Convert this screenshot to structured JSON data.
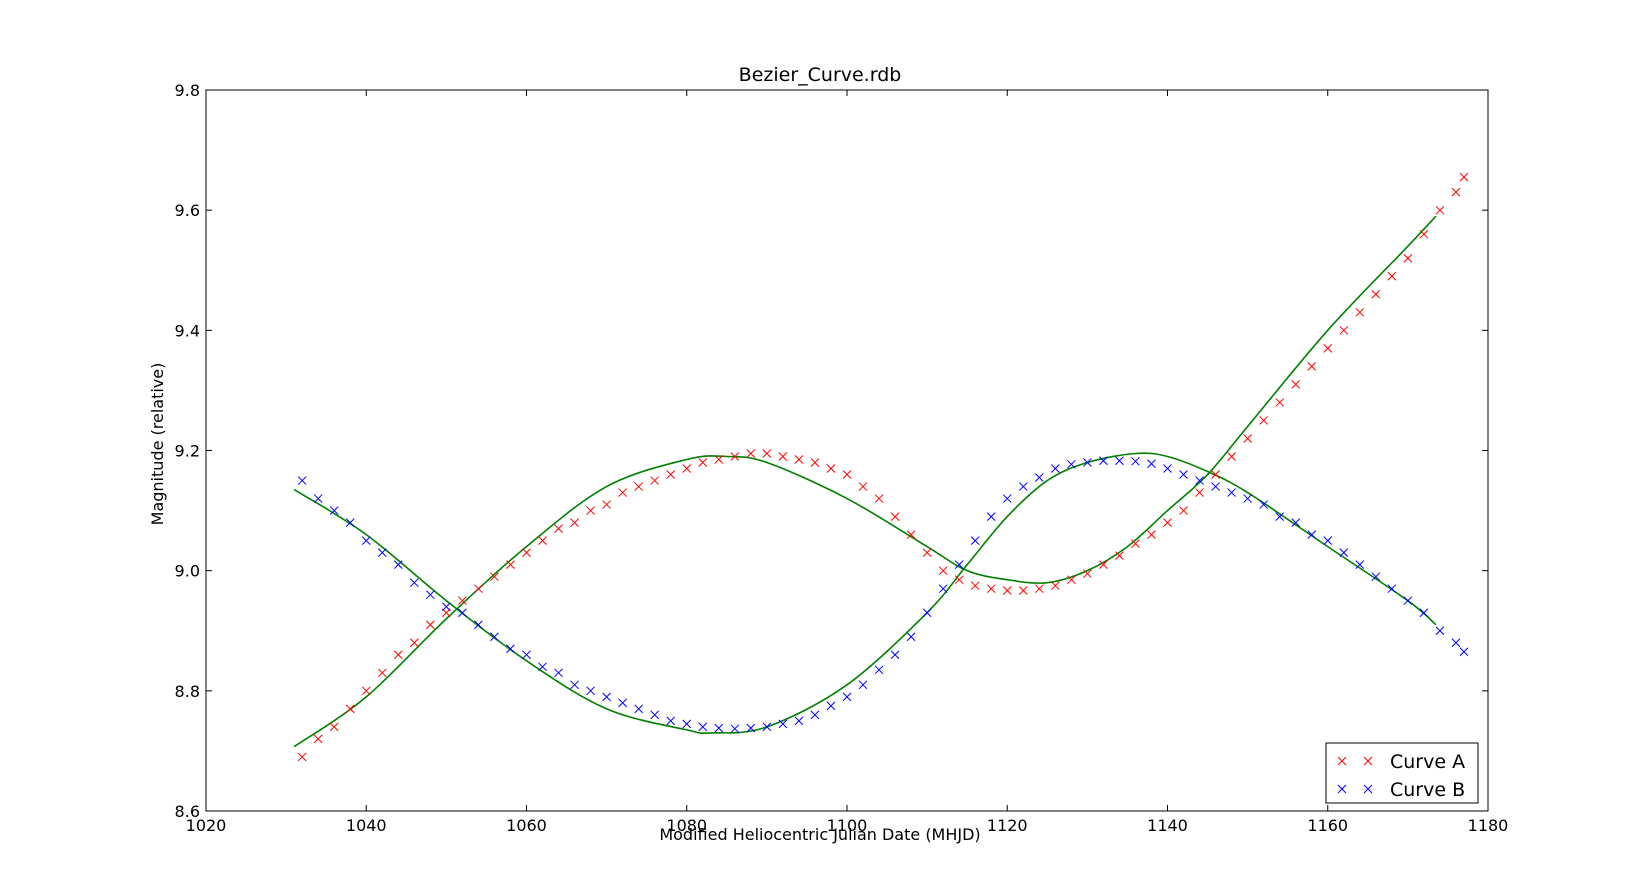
{
  "chart_data": {
    "type": "scatter",
    "title": "Bezier_Curve.rdb",
    "xlabel": "Modified Heliocentric Julian Date (MHJD)",
    "ylabel": "Magnitude (relative)",
    "xlim": [
      1020,
      1180
    ],
    "ylim": [
      8.6,
      9.8
    ],
    "xticks": [
      1020,
      1040,
      1060,
      1080,
      1100,
      1120,
      1140,
      1160,
      1180
    ],
    "yticks": [
      8.6,
      8.8,
      9.0,
      9.2,
      9.4,
      9.6,
      9.8
    ],
    "xtick_labels": [
      "1020",
      "1040",
      "1060",
      "1080",
      "1100",
      "1120",
      "1140",
      "1160",
      "1180"
    ],
    "ytick_labels": [
      "8.6",
      "8.8",
      "9.0",
      "9.2",
      "9.4",
      "9.6",
      "9.8"
    ],
    "grid": false,
    "legend_position": "lower-right",
    "marker": "x",
    "series": [
      {
        "name": "Curve A",
        "color": "#ff0000",
        "points": [
          [
            1032,
            8.69
          ],
          [
            1034,
            8.72
          ],
          [
            1036,
            8.74
          ],
          [
            1038,
            8.77
          ],
          [
            1040,
            8.8
          ],
          [
            1042,
            8.83
          ],
          [
            1044,
            8.86
          ],
          [
            1046,
            8.88
          ],
          [
            1048,
            8.91
          ],
          [
            1050,
            8.93
          ],
          [
            1052,
            8.95
          ],
          [
            1054,
            8.97
          ],
          [
            1056,
            8.99
          ],
          [
            1058,
            9.01
          ],
          [
            1060,
            9.03
          ],
          [
            1062,
            9.05
          ],
          [
            1064,
            9.07
          ],
          [
            1066,
            9.08
          ],
          [
            1068,
            9.1
          ],
          [
            1070,
            9.11
          ],
          [
            1072,
            9.13
          ],
          [
            1074,
            9.14
          ],
          [
            1076,
            9.15
          ],
          [
            1078,
            9.16
          ],
          [
            1080,
            9.17
          ],
          [
            1082,
            9.18
          ],
          [
            1084,
            9.185
          ],
          [
            1086,
            9.19
          ],
          [
            1088,
            9.195
          ],
          [
            1090,
            9.195
          ],
          [
            1092,
            9.19
          ],
          [
            1094,
            9.185
          ],
          [
            1096,
            9.18
          ],
          [
            1098,
            9.17
          ],
          [
            1100,
            9.16
          ],
          [
            1102,
            9.14
          ],
          [
            1104,
            9.12
          ],
          [
            1106,
            9.09
          ],
          [
            1108,
            9.06
          ],
          [
            1110,
            9.03
          ],
          [
            1112,
            9.0
          ],
          [
            1114,
            8.985
          ],
          [
            1116,
            8.975
          ],
          [
            1118,
            8.97
          ],
          [
            1120,
            8.967
          ],
          [
            1122,
            8.967
          ],
          [
            1124,
            8.97
          ],
          [
            1126,
            8.975
          ],
          [
            1128,
            8.985
          ],
          [
            1130,
            8.995
          ],
          [
            1132,
            9.01
          ],
          [
            1134,
            9.025
          ],
          [
            1136,
            9.045
          ],
          [
            1138,
            9.06
          ],
          [
            1140,
            9.08
          ],
          [
            1142,
            9.1
          ],
          [
            1144,
            9.13
          ],
          [
            1146,
            9.16
          ],
          [
            1148,
            9.19
          ],
          [
            1150,
            9.22
          ],
          [
            1152,
            9.25
          ],
          [
            1154,
            9.28
          ],
          [
            1156,
            9.31
          ],
          [
            1158,
            9.34
          ],
          [
            1160,
            9.37
          ],
          [
            1162,
            9.4
          ],
          [
            1164,
            9.43
          ],
          [
            1166,
            9.46
          ],
          [
            1168,
            9.49
          ],
          [
            1170,
            9.52
          ],
          [
            1172,
            9.56
          ],
          [
            1174,
            9.6
          ],
          [
            1176,
            9.63
          ],
          [
            1177,
            9.655
          ]
        ]
      },
      {
        "name": "Curve B",
        "color": "#0000ff",
        "points": [
          [
            1032,
            9.15
          ],
          [
            1034,
            9.12
          ],
          [
            1036,
            9.1
          ],
          [
            1038,
            9.08
          ],
          [
            1040,
            9.05
          ],
          [
            1042,
            9.03
          ],
          [
            1044,
            9.01
          ],
          [
            1046,
            8.98
          ],
          [
            1048,
            8.96
          ],
          [
            1050,
            8.94
          ],
          [
            1052,
            8.93
          ],
          [
            1054,
            8.91
          ],
          [
            1056,
            8.89
          ],
          [
            1058,
            8.87
          ],
          [
            1060,
            8.86
          ],
          [
            1062,
            8.84
          ],
          [
            1064,
            8.83
          ],
          [
            1066,
            8.81
          ],
          [
            1068,
            8.8
          ],
          [
            1070,
            8.79
          ],
          [
            1072,
            8.78
          ],
          [
            1074,
            8.77
          ],
          [
            1076,
            8.76
          ],
          [
            1078,
            8.75
          ],
          [
            1080,
            8.745
          ],
          [
            1082,
            8.74
          ],
          [
            1084,
            8.738
          ],
          [
            1086,
            8.737
          ],
          [
            1088,
            8.738
          ],
          [
            1090,
            8.74
          ],
          [
            1092,
            8.745
          ],
          [
            1094,
            8.75
          ],
          [
            1096,
            8.76
          ],
          [
            1098,
            8.775
          ],
          [
            1100,
            8.79
          ],
          [
            1102,
            8.81
          ],
          [
            1104,
            8.835
          ],
          [
            1106,
            8.86
          ],
          [
            1108,
            8.89
          ],
          [
            1110,
            8.93
          ],
          [
            1112,
            8.97
          ],
          [
            1114,
            9.01
          ],
          [
            1116,
            9.05
          ],
          [
            1118,
            9.09
          ],
          [
            1120,
            9.12
          ],
          [
            1122,
            9.14
          ],
          [
            1124,
            9.155
          ],
          [
            1126,
            9.17
          ],
          [
            1128,
            9.177
          ],
          [
            1130,
            9.18
          ],
          [
            1132,
            9.183
          ],
          [
            1134,
            9.183
          ],
          [
            1136,
            9.182
          ],
          [
            1138,
            9.178
          ],
          [
            1140,
            9.17
          ],
          [
            1142,
            9.16
          ],
          [
            1144,
            9.15
          ],
          [
            1146,
            9.14
          ],
          [
            1148,
            9.13
          ],
          [
            1150,
            9.12
          ],
          [
            1152,
            9.11
          ],
          [
            1154,
            9.09
          ],
          [
            1156,
            9.08
          ],
          [
            1158,
            9.06
          ],
          [
            1160,
            9.05
          ],
          [
            1162,
            9.03
          ],
          [
            1164,
            9.01
          ],
          [
            1166,
            8.99
          ],
          [
            1168,
            8.97
          ],
          [
            1170,
            8.95
          ],
          [
            1172,
            8.93
          ],
          [
            1174,
            8.9
          ],
          [
            1176,
            8.88
          ],
          [
            1177,
            8.865
          ]
        ]
      }
    ],
    "fit_lines": {
      "color": "#008000",
      "lines": [
        {
          "points": [
            [
              1031,
              8.707
            ],
            [
              1040,
              8.79
            ],
            [
              1050,
              8.92
            ],
            [
              1060,
              9.04
            ],
            [
              1070,
              9.14
            ],
            [
              1080,
              9.185
            ],
            [
              1085,
              9.19
            ],
            [
              1090,
              9.18
            ],
            [
              1100,
              9.12
            ],
            [
              1110,
              9.04
            ],
            [
              1115,
              9.0
            ],
            [
              1120,
              8.985
            ],
            [
              1125,
              8.98
            ],
            [
              1130,
              9.0
            ],
            [
              1135,
              9.04
            ],
            [
              1140,
              9.1
            ],
            [
              1145,
              9.16
            ],
            [
              1150,
              9.24
            ],
            [
              1160,
              9.4
            ],
            [
              1170,
              9.54
            ],
            [
              1173.5,
              9.59
            ]
          ]
        },
        {
          "points": [
            [
              1031,
              9.135
            ],
            [
              1040,
              9.06
            ],
            [
              1050,
              8.95
            ],
            [
              1060,
              8.85
            ],
            [
              1070,
              8.77
            ],
            [
              1080,
              8.735
            ],
            [
              1083,
              8.73
            ],
            [
              1090,
              8.74
            ],
            [
              1100,
              8.81
            ],
            [
              1110,
              8.93
            ],
            [
              1115,
              9.01
            ],
            [
              1120,
              9.09
            ],
            [
              1125,
              9.15
            ],
            [
              1130,
              9.18
            ],
            [
              1136,
              9.195
            ],
            [
              1140,
              9.19
            ],
            [
              1145,
              9.165
            ],
            [
              1150,
              9.13
            ],
            [
              1160,
              9.04
            ],
            [
              1170,
              8.95
            ],
            [
              1173.5,
              8.91
            ]
          ]
        }
      ]
    }
  }
}
